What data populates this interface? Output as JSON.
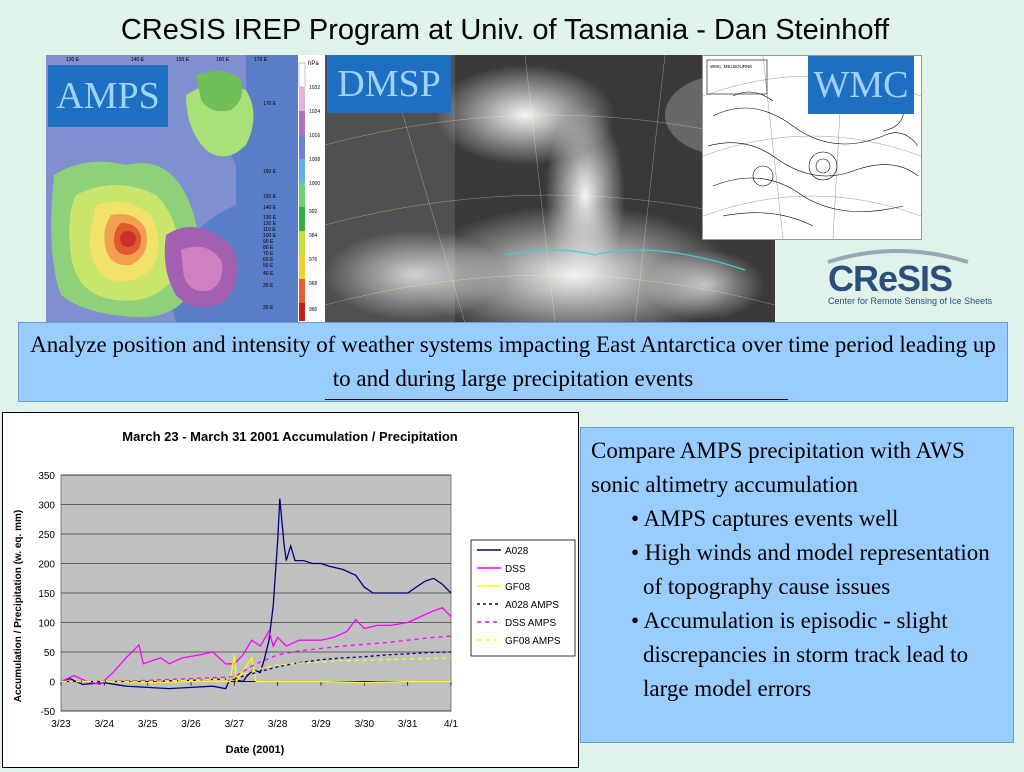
{
  "title": "CReSIS IREP Program at Univ. of Tasmania - Dan Steinhoff",
  "panels": {
    "amps_label": "AMPS",
    "dmsp_label": "DMSP",
    "wmc_label": "WMC",
    "wmc_header": "WMC, MELBOURNE",
    "amps_longitudes": [
      "130 E",
      "140 E",
      "150 E",
      "160 E",
      "170 E"
    ],
    "amps_latitudes": [
      "170 E",
      "160 E",
      "150 E",
      "140 E",
      "130 E",
      "120 E",
      "110 E",
      "100 E",
      "90 E",
      "80 E",
      "70 E",
      "60 E",
      "50 E",
      "40 E",
      "30 E",
      "20 E"
    ],
    "amps_legend_unit": "hPa",
    "amps_legend_values": [
      "1032",
      "1024",
      "1016",
      "1008",
      "1000",
      "992",
      "984",
      "976",
      "968",
      "960"
    ]
  },
  "logo": {
    "name": "CReSIS",
    "tagline": "Center for Remote Sensing of Ice Sheets"
  },
  "summary": "Analyze position and intensity of weather systems impacting East Antarctica over time period leading up to and during large precipitation events",
  "notes": {
    "heading": "Compare AMPS precipitation with AWS sonic altimetry accumulation",
    "bullets": [
      "• AMPS captures events well",
      "• High winds and model representation of topography cause issues",
      "• Accumulation is episodic - slight discrepancies in storm track lead to large model errors"
    ]
  },
  "chart_data": {
    "type": "line",
    "title": "March 23 - March 31 2001 Accumulation / Precipitation",
    "xlabel": "Date (2001)",
    "ylabel": "Accumulation / Precipitation (w. eq. mm)",
    "categories": [
      "3/23",
      "3/24",
      "3/25",
      "3/26",
      "3/27",
      "3/28",
      "3/29",
      "3/30",
      "3/31",
      "4/1"
    ],
    "ylim": [
      -50,
      350
    ],
    "yticks": [
      -50,
      0,
      50,
      100,
      150,
      200,
      250,
      300,
      350
    ],
    "grid": true,
    "legend": "right",
    "plot_bg": "#c0c0c0",
    "series": [
      {
        "name": "A028",
        "color": "#000080",
        "dash": "solid",
        "points": [
          [
            0,
            0
          ],
          [
            0.2,
            5
          ],
          [
            0.5,
            -5
          ],
          [
            1.0,
            -2
          ],
          [
            1.5,
            -8
          ],
          [
            2.0,
            -10
          ],
          [
            2.5,
            -12
          ],
          [
            3.0,
            -10
          ],
          [
            3.5,
            -8
          ],
          [
            3.8,
            -12
          ],
          [
            3.9,
            5
          ],
          [
            4.2,
            0
          ],
          [
            4.3,
            10
          ],
          [
            4.45,
            20
          ],
          [
            4.6,
            15
          ],
          [
            4.7,
            40
          ],
          [
            4.8,
            70
          ],
          [
            4.9,
            130
          ],
          [
            5.0,
            240
          ],
          [
            5.05,
            310
          ],
          [
            5.1,
            270
          ],
          [
            5.15,
            230
          ],
          [
            5.2,
            205
          ],
          [
            5.3,
            230
          ],
          [
            5.4,
            205
          ],
          [
            5.6,
            205
          ],
          [
            5.8,
            200
          ],
          [
            6.0,
            200
          ],
          [
            6.2,
            195
          ],
          [
            6.5,
            190
          ],
          [
            6.8,
            180
          ],
          [
            7.0,
            160
          ],
          [
            7.2,
            150
          ],
          [
            7.5,
            150
          ],
          [
            7.8,
            150
          ],
          [
            8.0,
            150
          ],
          [
            8.2,
            160
          ],
          [
            8.4,
            170
          ],
          [
            8.6,
            175
          ],
          [
            8.8,
            165
          ],
          [
            9.0,
            150
          ]
        ]
      },
      {
        "name": "DSS",
        "color": "#ff00ff",
        "dash": "solid",
        "points": [
          [
            0,
            0
          ],
          [
            0.3,
            10
          ],
          [
            0.6,
            0
          ],
          [
            0.9,
            -5
          ],
          [
            1.2,
            15
          ],
          [
            1.5,
            40
          ],
          [
            1.8,
            62
          ],
          [
            1.9,
            30
          ],
          [
            2.1,
            35
          ],
          [
            2.3,
            40
          ],
          [
            2.5,
            30
          ],
          [
            2.8,
            40
          ],
          [
            3.2,
            45
          ],
          [
            3.5,
            50
          ],
          [
            3.8,
            30
          ],
          [
            4.0,
            30
          ],
          [
            4.2,
            45
          ],
          [
            4.4,
            70
          ],
          [
            4.6,
            60
          ],
          [
            4.8,
            85
          ],
          [
            4.9,
            60
          ],
          [
            5.0,
            75
          ],
          [
            5.2,
            60
          ],
          [
            5.5,
            70
          ],
          [
            6.0,
            70
          ],
          [
            6.3,
            75
          ],
          [
            6.6,
            85
          ],
          [
            6.8,
            105
          ],
          [
            7.0,
            90
          ],
          [
            7.3,
            95
          ],
          [
            7.6,
            95
          ],
          [
            8.0,
            100
          ],
          [
            8.3,
            110
          ],
          [
            8.6,
            120
          ],
          [
            8.8,
            125
          ],
          [
            9.0,
            110
          ]
        ]
      },
      {
        "name": "GF08",
        "color": "#ffff00",
        "dash": "solid",
        "points": [
          [
            0,
            0
          ],
          [
            1.0,
            0
          ],
          [
            2.0,
            -2
          ],
          [
            3.0,
            0
          ],
          [
            3.9,
            0
          ],
          [
            4.0,
            45
          ],
          [
            4.05,
            0
          ],
          [
            4.4,
            40
          ],
          [
            4.5,
            0
          ],
          [
            5.0,
            0
          ],
          [
            6.0,
            0
          ],
          [
            7.0,
            -2
          ],
          [
            8.0,
            0
          ],
          [
            9.0,
            0
          ]
        ]
      },
      {
        "name": "A028 AMPS",
        "color": "#000080",
        "dash": "3,3",
        "points": [
          [
            0,
            0
          ],
          [
            1,
            0
          ],
          [
            2,
            0
          ],
          [
            3,
            2
          ],
          [
            4,
            5
          ],
          [
            4.5,
            15
          ],
          [
            5.0,
            25
          ],
          [
            5.5,
            32
          ],
          [
            6.0,
            37
          ],
          [
            6.5,
            40
          ],
          [
            7.0,
            42
          ],
          [
            7.5,
            45
          ],
          [
            8.0,
            47
          ],
          [
            8.5,
            49
          ],
          [
            9.0,
            50
          ]
        ]
      },
      {
        "name": "DSS AMPS",
        "color": "#ff00ff",
        "dash": "4,4",
        "points": [
          [
            0,
            0
          ],
          [
            1,
            0
          ],
          [
            2,
            2
          ],
          [
            3,
            5
          ],
          [
            4,
            8
          ],
          [
            4.5,
            30
          ],
          [
            5.0,
            45
          ],
          [
            5.5,
            52
          ],
          [
            6.0,
            56
          ],
          [
            6.5,
            60
          ],
          [
            7.0,
            63
          ],
          [
            7.5,
            66
          ],
          [
            8.0,
            70
          ],
          [
            8.5,
            74
          ],
          [
            9.0,
            77
          ]
        ]
      },
      {
        "name": "GF08 AMPS",
        "color": "#ffff00",
        "dash": "4,4",
        "points": [
          [
            0,
            0
          ],
          [
            1,
            0
          ],
          [
            2,
            0
          ],
          [
            3,
            2
          ],
          [
            4,
            5
          ],
          [
            4.5,
            20
          ],
          [
            5.0,
            28
          ],
          [
            5.5,
            31
          ],
          [
            6.0,
            33
          ],
          [
            6.5,
            35
          ],
          [
            7.0,
            36
          ],
          [
            7.5,
            37
          ],
          [
            8.0,
            38
          ],
          [
            8.5,
            39
          ],
          [
            9.0,
            40
          ]
        ]
      }
    ]
  }
}
